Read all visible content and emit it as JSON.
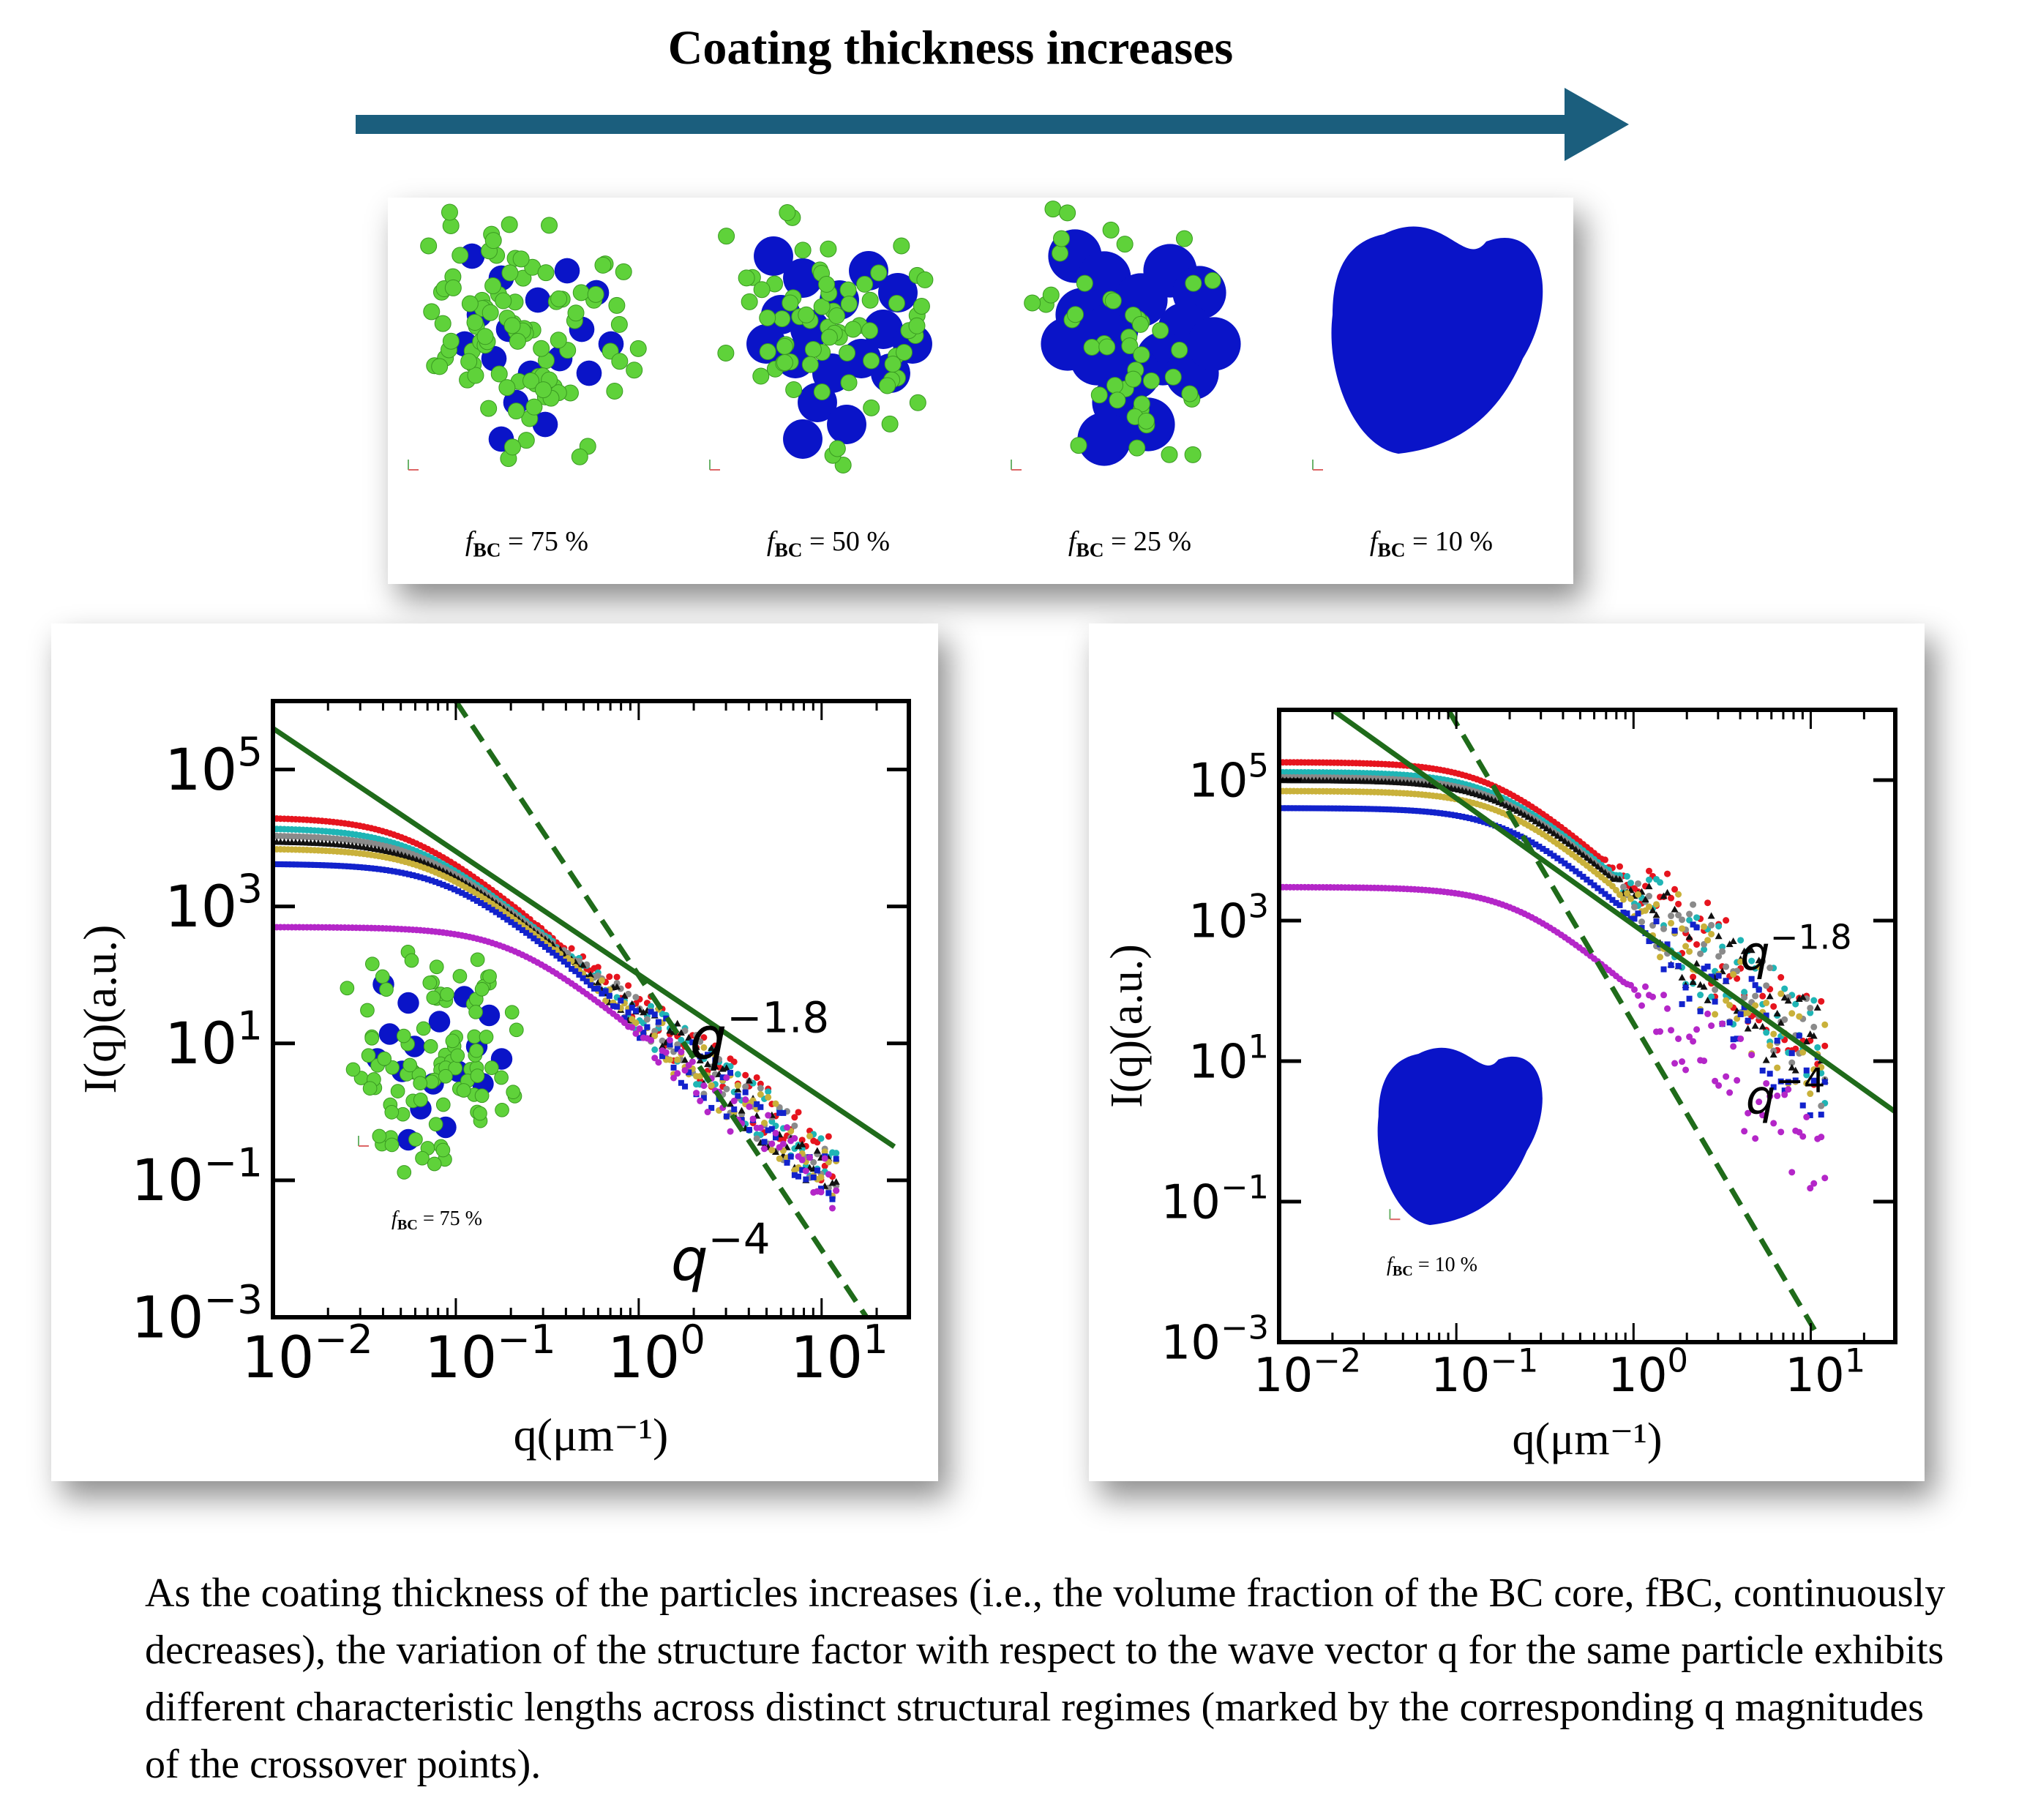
{
  "header": {
    "title": "Coating thickness increases"
  },
  "snapshots": [
    {
      "label_symbol": "f",
      "label_subscript": "BC",
      "label_value": "= 75 %",
      "fill_ratio": 0.25
    },
    {
      "label_symbol": "f",
      "label_subscript": "BC",
      "label_value": "= 50 %",
      "fill_ratio": 0.5
    },
    {
      "label_symbol": "f",
      "label_subscript": "BC",
      "label_value": "= 25 %",
      "fill_ratio": 0.75
    },
    {
      "label_symbol": "f",
      "label_subscript": "BC",
      "label_value": "= 10 %",
      "fill_ratio": 1.0
    }
  ],
  "colors": {
    "arrow": "#1b5e7d",
    "coating": "#0a14c8",
    "core": "#5fd23a",
    "fit_line": "#1f6b1a"
  },
  "chart_data": [
    {
      "type": "scatter",
      "xscale": "log",
      "yscale": "log",
      "xlim": [
        0.01,
        30
      ],
      "ylim": [
        0.001,
        1000000
      ],
      "xlabel": "q(μm⁻¹)",
      "ylabel": "I(q)(a.u.)",
      "xticks": [
        {
          "v": 0.01,
          "m": "10",
          "e": "−2"
        },
        {
          "v": 0.1,
          "m": "10",
          "e": "−1"
        },
        {
          "v": 1,
          "m": "10",
          "e": "0"
        },
        {
          "v": 10,
          "m": "10",
          "e": "1"
        }
      ],
      "yticks": [
        {
          "v": 0.001,
          "m": "10",
          "e": "−3"
        },
        {
          "v": 0.1,
          "m": "10",
          "e": "−1"
        },
        {
          "v": 10,
          "m": "10",
          "e": "1"
        },
        {
          "v": 1000,
          "m": "10",
          "e": "3"
        },
        {
          "v": 100000,
          "m": "10",
          "e": "5"
        }
      ],
      "inset_label": "f",
      "inset_subscript": "BC",
      "inset_value": "= 75 %",
      "annotations": [
        {
          "base": "q",
          "exp": "−1.8",
          "at": [
            1.9,
            6
          ]
        },
        {
          "base": "q",
          "exp": "−4",
          "at": [
            1.5,
            0.0035
          ]
        }
      ],
      "lines": [
        {
          "style": "solid",
          "points": [
            [
              0.01,
              400000
            ],
            [
              25,
              0.31
            ]
          ]
        },
        {
          "style": "dashed",
          "points": [
            [
              0.1,
              1000000
            ],
            [
              20,
              0.0006
            ]
          ]
        }
      ],
      "series": [
        {
          "color": "#e6141e",
          "plateau": 20000,
          "knee": 0.055
        },
        {
          "color": "#1fb5b5",
          "plateau": 14000,
          "knee": 0.06
        },
        {
          "color": "#8a8a8a",
          "plateau": 11000,
          "knee": 0.065
        },
        {
          "color": "#111111",
          "plateau": 9000,
          "knee": 0.07
        },
        {
          "color": "#c9b13a",
          "plateau": 7000,
          "knee": 0.075
        },
        {
          "color": "#1222cc",
          "plateau": 4200,
          "knee": 0.09
        },
        {
          "color": "#b426c8",
          "plateau": 500,
          "knee": 0.2
        }
      ]
    },
    {
      "type": "scatter",
      "xscale": "log",
      "yscale": "log",
      "xlim": [
        0.01,
        30
      ],
      "ylim": [
        0.001,
        1000000
      ],
      "xlabel": "q(μm⁻¹)",
      "ylabel": "I(q)(a.u.)",
      "xticks": [
        {
          "v": 0.01,
          "m": "10",
          "e": "−2"
        },
        {
          "v": 0.1,
          "m": "10",
          "e": "−1"
        },
        {
          "v": 1,
          "m": "10",
          "e": "0"
        },
        {
          "v": 10,
          "m": "10",
          "e": "1"
        }
      ],
      "yticks": [
        {
          "v": 0.001,
          "m": "10",
          "e": "−3"
        },
        {
          "v": 0.1,
          "m": "10",
          "e": "−1"
        },
        {
          "v": 10,
          "m": "10",
          "e": "1"
        },
        {
          "v": 1000,
          "m": "10",
          "e": "3"
        },
        {
          "v": 100000,
          "m": "10",
          "e": "5"
        }
      ],
      "inset_label": "f",
      "inset_subscript": "BC",
      "inset_value": "= 10 %",
      "annotations": [
        {
          "base": "q",
          "exp": "−1.8",
          "at": [
            4,
            200
          ]
        },
        {
          "base": "q",
          "exp": "−4",
          "at": [
            4.3,
            1.8
          ]
        }
      ],
      "lines": [
        {
          "style": "solid",
          "points": [
            [
              0.02,
              1000000
            ],
            [
              30,
              1.9
            ]
          ]
        },
        {
          "style": "dashed",
          "points": [
            [
              0.09,
              1000000
            ],
            [
              10.5,
              0.0015
            ]
          ]
        }
      ],
      "series": [
        {
          "color": "#e6141e",
          "plateau": 180000,
          "knee": 0.16
        },
        {
          "color": "#1fb5b5",
          "plateau": 130000,
          "knee": 0.17
        },
        {
          "color": "#8a8a8a",
          "plateau": 110000,
          "knee": 0.175
        },
        {
          "color": "#111111",
          "plateau": 100000,
          "knee": 0.18
        },
        {
          "color": "#c9b13a",
          "plateau": 70000,
          "knee": 0.19
        },
        {
          "color": "#1222cc",
          "plateau": 40000,
          "knee": 0.2
        },
        {
          "color": "#b426c8",
          "plateau": 3000,
          "knee": 0.22
        }
      ]
    }
  ],
  "caption": "As the coating thickness of the particles increases (i.e., the volume fraction of the BC core, fBC, continuously decreases), the variation of the structure factor with respect to the wave vector q for the same particle exhibits different characteristic lengths across distinct structural regimes (marked by the corresponding q magnitudes of the crossover points)."
}
